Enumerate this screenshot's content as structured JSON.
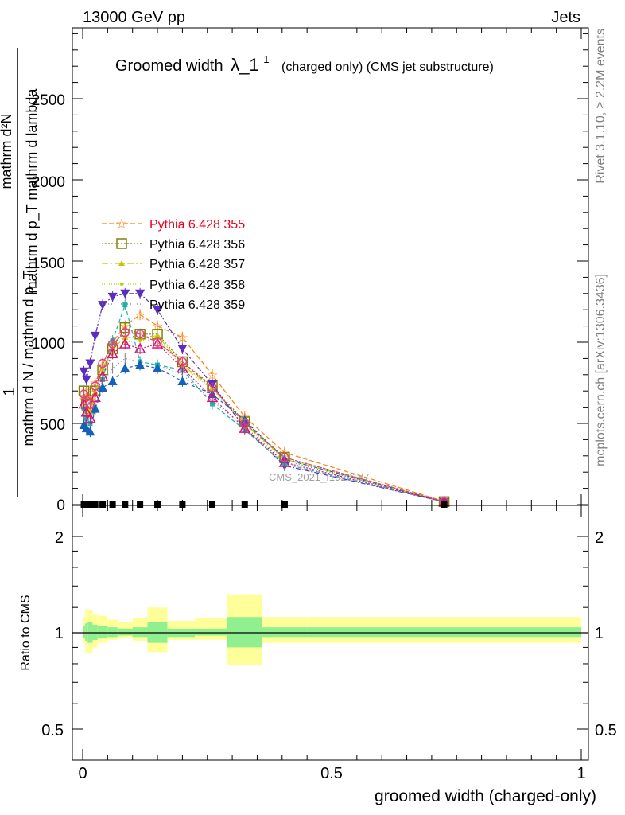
{
  "header": {
    "left": "13000 GeV pp",
    "right": "Jets"
  },
  "side_labels": {
    "rivet": "Rivet 3.1.10, ≥ 2.2M events",
    "mcplots": "mcplots.cern.ch [arXiv:1306.3436]"
  },
  "chart_data": [
    {
      "type": "line",
      "title_main": "Groomed width",
      "title_lambda": "λ_1",
      "title_sup": "1",
      "title_rest": "(charged only) (CMS jet substructure)",
      "ylabel_top": "1",
      "ylabel_bottom": "mathrm d N / mathrm d p_T",
      "ylabel_frac_num": "mathrm d²N",
      "ylabel_frac_den": "mathrm d p_T mathrm d lambda",
      "ref_label": "CMS_2021_I1920187",
      "xlim": [
        0,
        1
      ],
      "ylim": [
        0,
        2950
      ],
      "yticks": [
        "0",
        "500",
        "1000",
        "1500",
        "2000",
        "2500"
      ],
      "ytick_values": [
        0,
        500,
        1000,
        1500,
        2000,
        2500
      ],
      "grid": false,
      "legend_position": "middle-left",
      "x": [
        0.0025,
        0.0075,
        0.015,
        0.025,
        0.04,
        0.06,
        0.085,
        0.115,
        0.15,
        0.2,
        0.26,
        0.325,
        0.405,
        0.725
      ],
      "data_points": [
        0,
        0,
        0,
        0,
        0,
        0,
        0,
        0,
        0,
        0,
        0,
        0,
        0,
        0
      ],
      "series": [
        {
          "name": "Pythia 6.428 355",
          "color": "#ff7f0e",
          "marker": "star",
          "dash": "6,3",
          "values": [
            650,
            700,
            660,
            750,
            860,
            1000,
            1100,
            1170,
            1100,
            1030,
            800,
            540,
            320,
            20
          ]
        },
        {
          "name": "Pythia 6.428 356",
          "color": "#808000",
          "marker": "square-open",
          "dash": "2,2",
          "values": [
            700,
            620,
            590,
            700,
            830,
            960,
            1090,
            1050,
            1050,
            880,
            730,
            510,
            290,
            18
          ]
        },
        {
          "name": "Pythia 6.428 357",
          "color": "#c8c800",
          "marker": "tri-small",
          "dash": "8,3,2,3",
          "values": [
            670,
            600,
            570,
            690,
            840,
            960,
            1030,
            1030,
            1040,
            860,
            720,
            500,
            280,
            18
          ]
        },
        {
          "name": "Pythia 6.428 358",
          "color": "#a8d800",
          "marker": "dot-small",
          "dash": "1,2",
          "values": [
            640,
            580,
            560,
            680,
            820,
            930,
            1000,
            1010,
            1020,
            850,
            710,
            490,
            280,
            18
          ]
        },
        {
          "name": "Pythia 6.428 359",
          "color": "#7f7f7f",
          "marker": "none",
          "dash": "1,3",
          "values": [
            560,
            520,
            500,
            620,
            750,
            840,
            900,
            880,
            860,
            800,
            640,
            480,
            270,
            17
          ]
        },
        {
          "name": "",
          "color": "#5a2dbf",
          "marker": "tri-down",
          "dash": "6,2,2,2",
          "values": [
            820,
            770,
            870,
            1040,
            1230,
            1280,
            1300,
            1300,
            1200,
            960,
            740,
            470,
            240,
            17
          ]
        },
        {
          "name": "",
          "color": "#20b2aa",
          "marker": "square-small",
          "dash": "5,3",
          "values": [
            590,
            530,
            500,
            590,
            770,
            1010,
            1230,
            880,
            860,
            830,
            620,
            460,
            250,
            16
          ]
        },
        {
          "name": "",
          "color": "#1560bd",
          "marker": "tri-up",
          "dash": "4,3",
          "values": [
            490,
            470,
            450,
            590,
            720,
            760,
            840,
            860,
            840,
            760,
            680,
            520,
            280,
            17
          ]
        },
        {
          "name": "",
          "color": "#dd1177",
          "marker": "tri-open",
          "dash": "2,2",
          "values": [
            620,
            570,
            530,
            660,
            790,
            930,
            990,
            960,
            990,
            840,
            660,
            470,
            260,
            17
          ]
        },
        {
          "name": "",
          "color": "#e0457b",
          "marker": "circle-open",
          "dash": "4,2",
          "values": [
            680,
            640,
            620,
            730,
            870,
            990,
            1060,
            1050,
            1000,
            880,
            720,
            500,
            290,
            18
          ]
        }
      ]
    },
    {
      "type": "area",
      "ylabel": "Ratio to CMS",
      "xlabel": "groomed width (charged-only)",
      "xlim": [
        0,
        1
      ],
      "ylim": [
        0.4,
        2.35
      ],
      "log_y": true,
      "xticks": [
        "0",
        "0.5",
        "1"
      ],
      "xtick_values": [
        0,
        0.5,
        1
      ],
      "yticks": [
        "0.5",
        "1",
        "2"
      ],
      "ytick_values": [
        0.5,
        1,
        2
      ],
      "bin_edges": [
        0,
        0.005,
        0.01,
        0.02,
        0.03,
        0.05,
        0.07,
        0.1,
        0.13,
        0.17,
        0.225,
        0.29,
        0.36,
        0.45,
        1.0
      ],
      "stat_band": [
        [
          0.96,
          1.05
        ],
        [
          0.94,
          1.07
        ],
        [
          0.93,
          1.08
        ],
        [
          0.95,
          1.06
        ],
        [
          0.96,
          1.05
        ],
        [
          0.97,
          1.04
        ],
        [
          0.98,
          1.03
        ],
        [
          0.97,
          1.04
        ],
        [
          0.93,
          1.08
        ],
        [
          0.97,
          1.03
        ],
        [
          0.98,
          1.03
        ],
        [
          0.9,
          1.12
        ],
        [
          0.97,
          1.04
        ],
        [
          0.97,
          1.04
        ]
      ],
      "total_band": [
        [
          0.93,
          1.12
        ],
        [
          0.87,
          1.19
        ],
        [
          0.86,
          1.18
        ],
        [
          0.9,
          1.14
        ],
        [
          0.93,
          1.13
        ],
        [
          0.95,
          1.1
        ],
        [
          0.96,
          1.08
        ],
        [
          0.94,
          1.11
        ],
        [
          0.87,
          1.2
        ],
        [
          0.95,
          1.09
        ],
        [
          0.95,
          1.11
        ],
        [
          0.79,
          1.32
        ],
        [
          0.93,
          1.12
        ],
        [
          0.93,
          1.12
        ]
      ],
      "colors": {
        "stat": "#90f090",
        "total": "#ffff99",
        "ref_line": "#000000"
      }
    }
  ]
}
